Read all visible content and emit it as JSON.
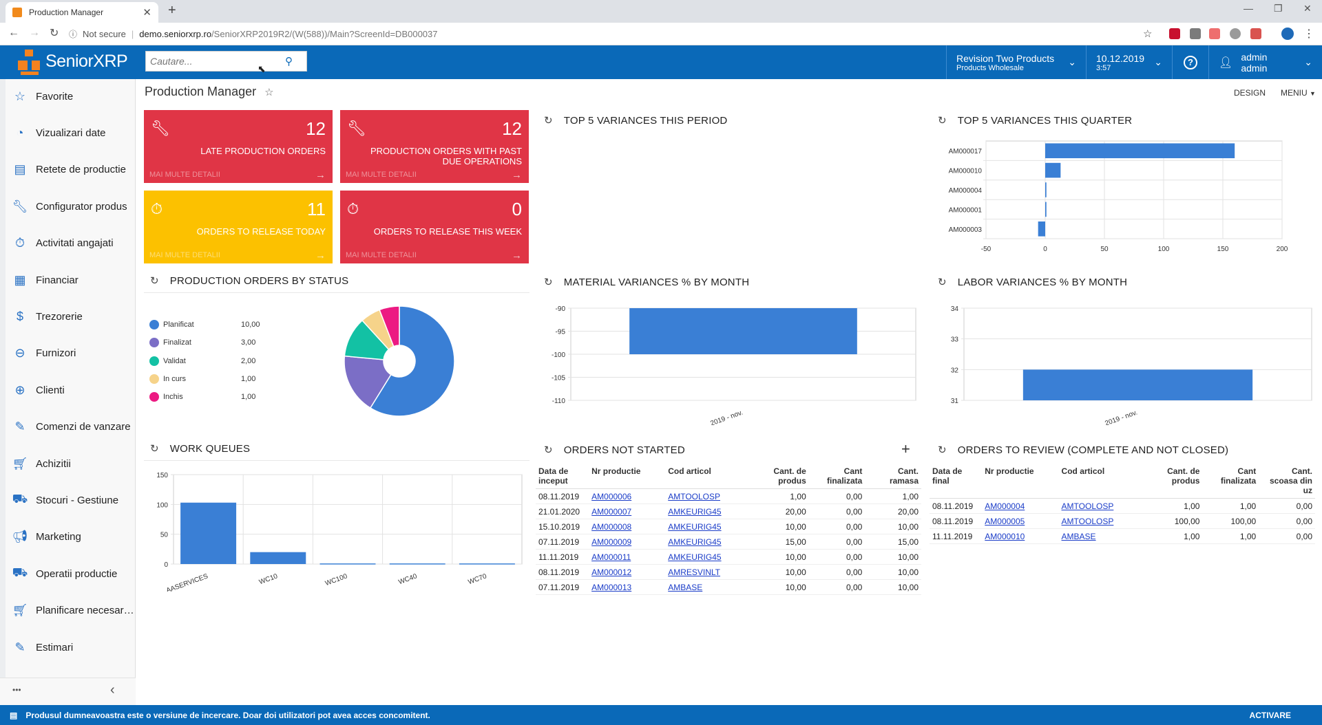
{
  "browser": {
    "tab_title": "Production Manager",
    "not_secure": "Not secure",
    "url_host": "demo.seniorxrp.ro",
    "url_path": "/SeniorXRP2019R2/(W(588))/Main?ScreenId=DB000037"
  },
  "header": {
    "logo": "SeniorXRP",
    "search_placeholder": "Cautare...",
    "company": "Revision Two Products",
    "branch": "Products Wholesale",
    "date": "10.12.2019",
    "time": "3:57",
    "user": "admin admin"
  },
  "sidebar": {
    "items": [
      {
        "label": "Favorite",
        "icon": "star-icon"
      },
      {
        "label": "Vizualizari date",
        "icon": "pie-chart-icon"
      },
      {
        "label": "Retete de productie",
        "icon": "recipe-icon"
      },
      {
        "label": "Configurator produs",
        "icon": "wrench-icon"
      },
      {
        "label": "Activitati angajati",
        "icon": "stopwatch-icon"
      },
      {
        "label": "Financiar",
        "icon": "calculator-icon"
      },
      {
        "label": "Trezorerie",
        "icon": "dollar-icon"
      },
      {
        "label": "Furnizori",
        "icon": "minus-circle-icon"
      },
      {
        "label": "Clienti",
        "icon": "plus-circle-icon"
      },
      {
        "label": "Comenzi de vanzare",
        "icon": "edit-icon"
      },
      {
        "label": "Achizitii",
        "icon": "cart-icon"
      },
      {
        "label": "Stocuri - Gestiune",
        "icon": "truck-icon"
      },
      {
        "label": "Marketing",
        "icon": "megaphone-icon"
      },
      {
        "label": "Operatii productie",
        "icon": "truck-icon"
      },
      {
        "label": "Planificare necesar…",
        "icon": "cart-plus-icon"
      },
      {
        "label": "Estimari",
        "icon": "pencil-icon"
      }
    ],
    "more": "•••",
    "collapse": "‹"
  },
  "page": {
    "title": "Production Manager",
    "design": "DESIGN",
    "menu": "MENIU"
  },
  "tiles": [
    {
      "value": "12",
      "label": "LATE PRODUCTION ORDERS",
      "more": "MAI MULTE DETALII",
      "color": "#e03546",
      "icon": "wrench-icon"
    },
    {
      "value": "12",
      "label": "PRODUCTION ORDERS WITH PAST DUE OPERATIONS",
      "more": "MAI MULTE DETALII",
      "color": "#e03546",
      "icon": "wrench-icon"
    },
    {
      "value": "11",
      "label": "ORDERS TO RELEASE TODAY",
      "more": "MAI MULTE DETALII",
      "color": "#fcc100",
      "icon": "stopwatch-icon"
    },
    {
      "value": "0",
      "label": "ORDERS TO RELEASE THIS WEEK",
      "more": "MAI MULTE DETALII",
      "color": "#e03546",
      "icon": "stopwatch-icon"
    }
  ],
  "widgets": {
    "top5_period": "TOP 5 VARIANCES THIS PERIOD",
    "top5_quarter": "TOP 5 VARIANCES THIS QUARTER",
    "prod_status": "PRODUCTION ORDERS BY STATUS",
    "material_var": "MATERIAL VARIANCES % BY MONTH",
    "labor_var": "LABOR VARIANCES % BY MONTH",
    "work_queues": "WORK QUEUES",
    "orders_not_started": "ORDERS NOT STARTED",
    "orders_review": "ORDERS TO REVIEW (COMPLETE AND NOT CLOSED)"
  },
  "chart_data": [
    {
      "id": "top5_quarter",
      "type": "bar",
      "orientation": "horizontal",
      "categories": [
        "AM000017",
        "AM000010",
        "AM000004",
        "AM000001",
        "AM000003"
      ],
      "values": [
        160,
        13,
        1,
        1,
        -6
      ],
      "xlim": [
        -50,
        200
      ],
      "xticks": [
        "-50",
        "0",
        "50",
        "100",
        "150",
        "200"
      ],
      "color": "#3a7fd5"
    },
    {
      "id": "prod_status",
      "type": "pie",
      "labels": [
        "Planificat",
        "Finalizat",
        "Validat",
        "In curs",
        "Inchis"
      ],
      "values": [
        10,
        3,
        2,
        1,
        1
      ],
      "display_values": [
        "10,00",
        "3,00",
        "2,00",
        "1,00",
        "1,00"
      ],
      "colors": [
        "#3a7fd5",
        "#7b6ec6",
        "#13c1a4",
        "#f6d38a",
        "#ec1a82"
      ]
    },
    {
      "id": "material_var",
      "type": "bar",
      "categories": [
        "2019 - nov."
      ],
      "values": [
        -100
      ],
      "ylim": [
        -110,
        -90
      ],
      "yticks": [
        "-90",
        "-95",
        "-100",
        "-105",
        "-110"
      ],
      "color": "#3a7fd5"
    },
    {
      "id": "labor_var",
      "type": "bar",
      "categories": [
        "2019 - nov."
      ],
      "values": [
        32
      ],
      "ylim": [
        31,
        34
      ],
      "yticks": [
        "34",
        "33",
        "32",
        "31"
      ],
      "color": "#3a7fd5"
    },
    {
      "id": "work_queues",
      "type": "bar",
      "categories": [
        "AASERVICES",
        "WC10",
        "WC100",
        "WC40",
        "WC70"
      ],
      "values": [
        103,
        20,
        1,
        1,
        1
      ],
      "ylim": [
        0,
        150
      ],
      "yticks": [
        "150",
        "100",
        "50",
        "0"
      ],
      "color": "#3a7fd5"
    }
  ],
  "orders_not_started": {
    "headers": [
      "Data de inceput",
      "Nr productie",
      "Cod articol",
      "Cant. de produs",
      "Cant finalizata",
      "Cant. ramasa"
    ],
    "rows": [
      [
        "08.11.2019",
        "AM000006",
        "AMTOOLOSP",
        "1,00",
        "0,00",
        "1,00"
      ],
      [
        "21.01.2020",
        "AM000007",
        "AMKEURIG45",
        "20,00",
        "0,00",
        "20,00"
      ],
      [
        "15.10.2019",
        "AM000008",
        "AMKEURIG45",
        "10,00",
        "0,00",
        "10,00"
      ],
      [
        "07.11.2019",
        "AM000009",
        "AMKEURIG45",
        "15,00",
        "0,00",
        "15,00"
      ],
      [
        "11.11.2019",
        "AM000011",
        "AMKEURIG45",
        "10,00",
        "0,00",
        "10,00"
      ],
      [
        "08.11.2019",
        "AM000012",
        "AMRESVINLT",
        "10,00",
        "0,00",
        "10,00"
      ],
      [
        "07.11.2019",
        "AM000013",
        "AMBASE",
        "10,00",
        "0,00",
        "10,00"
      ]
    ]
  },
  "orders_review": {
    "headers": [
      "Data de final",
      "Nr productie",
      "Cod articol",
      "Cant. de produs",
      "Cant finalizata",
      "Cant. scoasa din uz"
    ],
    "rows": [
      [
        "08.11.2019",
        "AM000004",
        "AMTOOLOSP",
        "1,00",
        "1,00",
        "0,00"
      ],
      [
        "08.11.2019",
        "AM000005",
        "AMTOOLOSP",
        "100,00",
        "100,00",
        "0,00"
      ],
      [
        "11.11.2019",
        "AM000010",
        "AMBASE",
        "1,00",
        "1,00",
        "0,00"
      ]
    ]
  },
  "footer": {
    "message": "Produsul dumneavoastra este o versiune de incercare. Doar doi utilizatori pot avea acces concomitent.",
    "activate": "ACTIVARE"
  }
}
